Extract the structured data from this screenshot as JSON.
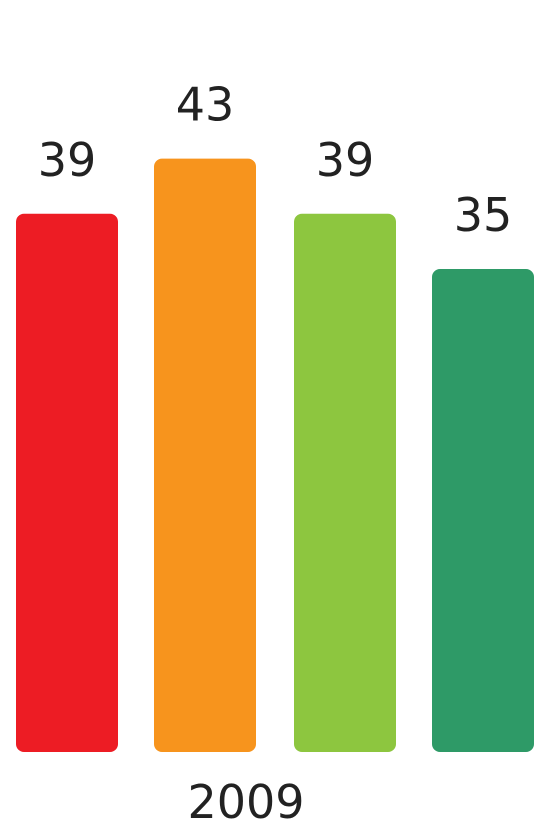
{
  "chart_data": {
    "type": "bar",
    "categories": [
      "2009"
    ],
    "series_values": [
      39,
      43,
      39,
      35
    ],
    "bar_colors": [
      "#ed1c24",
      "#f7941d",
      "#8dc63f",
      "#2e9a67"
    ],
    "ylim": [
      0,
      50
    ],
    "grid": false,
    "title": "",
    "xlabel": "",
    "ylabel": ""
  }
}
